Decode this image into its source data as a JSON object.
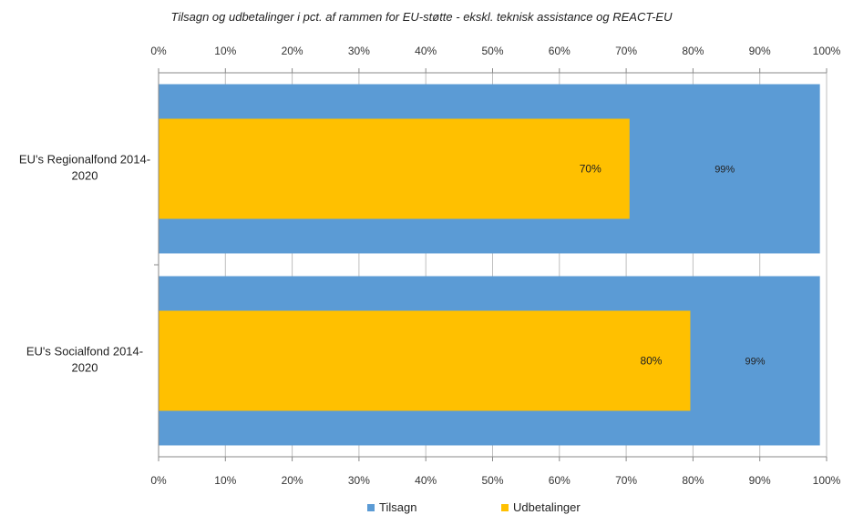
{
  "chart_data": {
    "type": "bar",
    "orientation": "horizontal",
    "title": "Tilsagn og udbetalinger i pct. af rammen for EU-støtte - ekskl. teknisk assistance og REACT-EU",
    "categories": [
      "EU's Regionalfond 2014-2020",
      "EU's Socialfond 2014-2020"
    ],
    "category_label_lines": [
      [
        "EU's Regionalfond 2014-",
        "2020"
      ],
      [
        "EU's Socialfond 2014-",
        "2020"
      ]
    ],
    "series": [
      {
        "name": "Tilsagn",
        "color": "#5b9bd5",
        "values": [
          99,
          99
        ],
        "labels": [
          "99%",
          "99%"
        ]
      },
      {
        "name": "Udbetalinger",
        "color": "#ffc000",
        "values": [
          70.5,
          79.6
        ],
        "labels": [
          "70%",
          "80%"
        ]
      }
    ],
    "xlim": [
      0,
      100
    ],
    "xticks": [
      "0%",
      "10%",
      "20%",
      "30%",
      "40%",
      "50%",
      "60%",
      "70%",
      "80%",
      "90%",
      "100%"
    ],
    "axis_top_and_bottom": true,
    "grid": true,
    "legend": "bottom",
    "xlabel": "",
    "ylabel": ""
  }
}
